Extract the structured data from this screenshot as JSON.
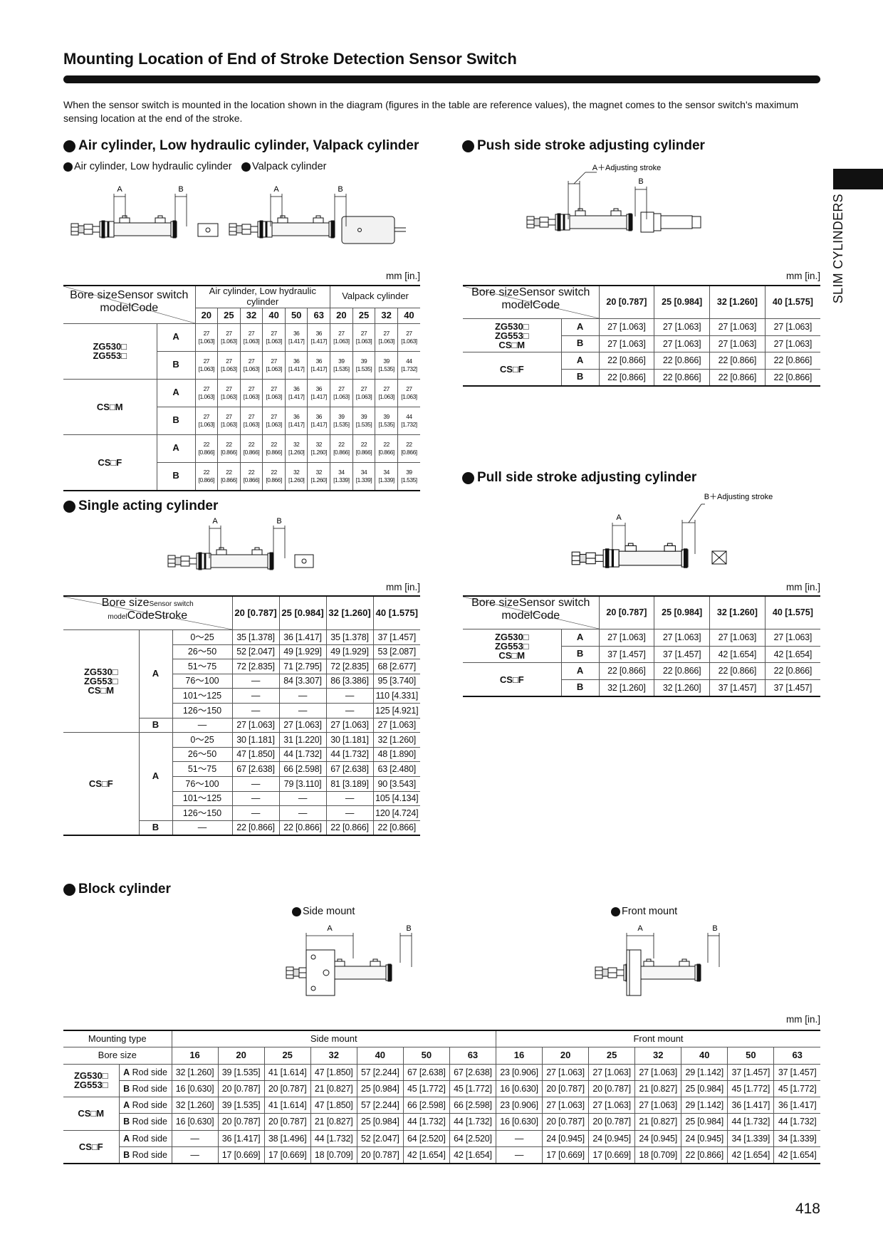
{
  "header": {
    "title": "Mounting Location of End of Stroke Detection Sensor Switch",
    "intro": "When the sensor switch is mounted in the location shown in the diagram (figures in the table are reference values), the magnet comes to the sensor switch's maximum sensing location at the end of the stroke."
  },
  "side_tab": "SLIM CYLINDERS",
  "page_number": "418",
  "unit": "mm [in.]",
  "sections": {
    "air": {
      "title": "Air cylinder, Low hydraulic cylinder, Valpack cylinder",
      "diagrams": [
        {
          "caption": "Air cylinder, Low hydraulic cylinder",
          "labels": [
            "A",
            "B"
          ]
        },
        {
          "caption": "Valpack cylinder",
          "labels": [
            "A",
            "B"
          ]
        }
      ],
      "table": {
        "corner_top": "Bore size",
        "corner_left": "Sensor switch model",
        "code_header": "Code",
        "groups": [
          {
            "name": "Air cylinder, Low hydraulic cylinder",
            "bores": [
              20,
              25,
              32,
              40,
              50,
              63
            ]
          },
          {
            "name": "Valpack cylinder",
            "bores": [
              20,
              25,
              32,
              40
            ]
          }
        ],
        "rows": [
          {
            "models": [
              "ZG530□",
              "ZG553□"
            ],
            "codes": [
              {
                "code": "A",
                "values": [
                  "27 [1.063]",
                  "27 [1.063]",
                  "27 [1.063]",
                  "27 [1.063]",
                  "36 [1.417]",
                  "36 [1.417]",
                  "27 [1.063]",
                  "27 [1.063]",
                  "27 [1.063]",
                  "27 [1.063]"
                ]
              },
              {
                "code": "B",
                "values": [
                  "27 [1.063]",
                  "27 [1.063]",
                  "27 [1.063]",
                  "27 [1.063]",
                  "36 [1.417]",
                  "36 [1.417]",
                  "39 [1.535]",
                  "39 [1.535]",
                  "39 [1.535]",
                  "44 [1.732]"
                ]
              }
            ]
          },
          {
            "models": [
              "CS□M"
            ],
            "codes": [
              {
                "code": "A",
                "values": [
                  "27 [1.063]",
                  "27 [1.063]",
                  "27 [1.063]",
                  "27 [1.063]",
                  "36 [1.417]",
                  "36 [1.417]",
                  "27 [1.063]",
                  "27 [1.063]",
                  "27 [1.063]",
                  "27 [1.063]"
                ]
              },
              {
                "code": "B",
                "values": [
                  "27 [1.063]",
                  "27 [1.063]",
                  "27 [1.063]",
                  "27 [1.063]",
                  "36 [1.417]",
                  "36 [1.417]",
                  "39 [1.535]",
                  "39 [1.535]",
                  "39 [1.535]",
                  "44 [1.732]"
                ]
              }
            ]
          },
          {
            "models": [
              "CS□F"
            ],
            "codes": [
              {
                "code": "A",
                "values": [
                  "22 [0.866]",
                  "22 [0.866]",
                  "22 [0.866]",
                  "22 [0.866]",
                  "32 [1.260]",
                  "32 [1.260]",
                  "22 [0.866]",
                  "22 [0.866]",
                  "22 [0.866]",
                  "22 [0.866]"
                ]
              },
              {
                "code": "B",
                "values": [
                  "22 [0.866]",
                  "22 [0.866]",
                  "22 [0.866]",
                  "22 [0.866]",
                  "32 [1.260]",
                  "32 [1.260]",
                  "34 [1.339]",
                  "34 [1.339]",
                  "34 [1.339]",
                  "39 [1.535]"
                ]
              }
            ]
          }
        ]
      }
    },
    "push": {
      "title": "Push side stroke adjusting cylinder",
      "diagram": {
        "labels": [
          "A＋Adjusting stroke",
          "B"
        ]
      },
      "table": {
        "corner_top": "Bore size",
        "corner_left": "Sensor switch model",
        "code_header": "Code",
        "bores": [
          "20 [0.787]",
          "25 [0.984]",
          "32 [1.260]",
          "40 [1.575]"
        ],
        "rows": [
          {
            "models": [
              "ZG530□",
              "ZG553□",
              "CS□M"
            ],
            "codes": [
              {
                "code": "A",
                "values": [
                  "27 [1.063]",
                  "27 [1.063]",
                  "27 [1.063]",
                  "27 [1.063]"
                ]
              },
              {
                "code": "B",
                "values": [
                  "27 [1.063]",
                  "27 [1.063]",
                  "27 [1.063]",
                  "27 [1.063]"
                ]
              }
            ]
          },
          {
            "models": [
              "CS□F"
            ],
            "codes": [
              {
                "code": "A",
                "values": [
                  "22 [0.866]",
                  "22 [0.866]",
                  "22 [0.866]",
                  "22 [0.866]"
                ]
              },
              {
                "code": "B",
                "values": [
                  "22 [0.866]",
                  "22 [0.866]",
                  "22 [0.866]",
                  "22 [0.866]"
                ]
              }
            ]
          }
        ]
      }
    },
    "pull": {
      "title": "Pull side stroke adjusting cylinder",
      "diagram": {
        "labels": [
          "A",
          "B＋Adjusting stroke"
        ]
      },
      "table": {
        "corner_top": "Bore size",
        "corner_left": "Sensor switch model",
        "code_header": "Code",
        "bores": [
          "20 [0.787]",
          "25 [0.984]",
          "32 [1.260]",
          "40 [1.575]"
        ],
        "rows": [
          {
            "models": [
              "ZG530□",
              "ZG553□",
              "CS□M"
            ],
            "codes": [
              {
                "code": "A",
                "values": [
                  "27 [1.063]",
                  "27 [1.063]",
                  "27 [1.063]",
                  "27 [1.063]"
                ]
              },
              {
                "code": "B",
                "values": [
                  "37 [1.457]",
                  "37 [1.457]",
                  "42 [1.654]",
                  "42 [1.654]"
                ]
              }
            ]
          },
          {
            "models": [
              "CS□F"
            ],
            "codes": [
              {
                "code": "A",
                "values": [
                  "22 [0.866]",
                  "22 [0.866]",
                  "22 [0.866]",
                  "22 [0.866]"
                ]
              },
              {
                "code": "B",
                "values": [
                  "32 [1.260]",
                  "32 [1.260]",
                  "37 [1.457]",
                  "37 [1.457]"
                ]
              }
            ]
          }
        ]
      }
    },
    "single": {
      "title": "Single acting cylinder",
      "diagram": {
        "labels": [
          "A",
          "B"
        ]
      },
      "table": {
        "corner_top": "Bore size",
        "corner_left": "Sensor switch model",
        "code_header": "Code",
        "stroke_header": "Stroke",
        "bores": [
          "20 [0.787]",
          "25 [0.984]",
          "32 [1.260]",
          "40 [1.575]"
        ],
        "rows": [
          {
            "models": [
              "ZG530□",
              "ZG553□",
              "CS□M"
            ],
            "codes": [
              {
                "code": "A",
                "strokes": [
                  {
                    "stroke": "0～25",
                    "values": [
                      "35 [1.378]",
                      "36 [1.417]",
                      "35 [1.378]",
                      "37 [1.457]"
                    ]
                  },
                  {
                    "stroke": "26～50",
                    "values": [
                      "52 [2.047]",
                      "49 [1.929]",
                      "49 [1.929]",
                      "53 [2.087]"
                    ]
                  },
                  {
                    "stroke": "51～75",
                    "values": [
                      "72 [2.835]",
                      "71 [2.795]",
                      "72 [2.835]",
                      "68 [2.677]"
                    ]
                  },
                  {
                    "stroke": "76～100",
                    "values": [
                      "—",
                      "84 [3.307]",
                      "86 [3.386]",
                      "95 [3.740]"
                    ]
                  },
                  {
                    "stroke": "101～125",
                    "values": [
                      "—",
                      "—",
                      "—",
                      "110 [4.331]"
                    ]
                  },
                  {
                    "stroke": "126～150",
                    "values": [
                      "—",
                      "—",
                      "—",
                      "125 [4.921]"
                    ]
                  }
                ]
              },
              {
                "code": "B",
                "strokes": [
                  {
                    "stroke": "—",
                    "values": [
                      "27 [1.063]",
                      "27 [1.063]",
                      "27 [1.063]",
                      "27 [1.063]"
                    ]
                  }
                ]
              }
            ]
          },
          {
            "models": [
              "CS□F"
            ],
            "codes": [
              {
                "code": "A",
                "strokes": [
                  {
                    "stroke": "0～25",
                    "values": [
                      "30 [1.181]",
                      "31 [1.220]",
                      "30 [1.181]",
                      "32 [1.260]"
                    ]
                  },
                  {
                    "stroke": "26～50",
                    "values": [
                      "47 [1.850]",
                      "44 [1.732]",
                      "44 [1.732]",
                      "48 [1.890]"
                    ]
                  },
                  {
                    "stroke": "51～75",
                    "values": [
                      "67 [2.638]",
                      "66 [2.598]",
                      "67 [2.638]",
                      "63 [2.480]"
                    ]
                  },
                  {
                    "stroke": "76～100",
                    "values": [
                      "—",
                      "79 [3.110]",
                      "81 [3.189]",
                      "90 [3.543]"
                    ]
                  },
                  {
                    "stroke": "101～125",
                    "values": [
                      "—",
                      "—",
                      "—",
                      "105 [4.134]"
                    ]
                  },
                  {
                    "stroke": "126～150",
                    "values": [
                      "—",
                      "—",
                      "—",
                      "120 [4.724]"
                    ]
                  }
                ]
              },
              {
                "code": "B",
                "strokes": [
                  {
                    "stroke": "—",
                    "values": [
                      "22 [0.866]",
                      "22 [0.866]",
                      "22 [0.866]",
                      "22 [0.866]"
                    ]
                  }
                ]
              }
            ]
          }
        ]
      }
    },
    "block": {
      "title": "Block cylinder",
      "diagrams": [
        {
          "caption": "Side mount",
          "labels": [
            "A",
            "B"
          ]
        },
        {
          "caption": "Front mount",
          "labels": [
            "A",
            "B"
          ]
        }
      ],
      "table": {
        "mounting_header": "Mounting type",
        "bore_header": "Bore size",
        "groups": [
          {
            "name": "Side mount",
            "bores": [
              16,
              20,
              25,
              32,
              40,
              50,
              63
            ]
          },
          {
            "name": "Front mount",
            "bores": [
              16,
              20,
              25,
              32,
              40,
              50,
              63
            ]
          }
        ],
        "rows": [
          {
            "models": [
              "ZG530□",
              "ZG553□"
            ],
            "codes": [
              {
                "code": "A",
                "label": "Rod side",
                "values": [
                  "32 [1.260]",
                  "39 [1.535]",
                  "41 [1.614]",
                  "47 [1.850]",
                  "57 [2.244]",
                  "67 [2.638]",
                  "67 [2.638]",
                  "23 [0.906]",
                  "27 [1.063]",
                  "27 [1.063]",
                  "27 [1.063]",
                  "29 [1.142]",
                  "37 [1.457]",
                  "37 [1.457]"
                ]
              },
              {
                "code": "B",
                "label": "Rod side",
                "values": [
                  "16 [0.630]",
                  "20 [0.787]",
                  "20 [0.787]",
                  "21 [0.827]",
                  "25 [0.984]",
                  "45 [1.772]",
                  "45 [1.772]",
                  "16 [0.630]",
                  "20 [0.787]",
                  "20 [0.787]",
                  "21 [0.827]",
                  "25 [0.984]",
                  "45 [1.772]",
                  "45 [1.772]"
                ]
              }
            ]
          },
          {
            "models": [
              "CS□M"
            ],
            "codes": [
              {
                "code": "A",
                "label": "Rod side",
                "values": [
                  "32 [1.260]",
                  "39 [1.535]",
                  "41 [1.614]",
                  "47 [1.850]",
                  "57 [2.244]",
                  "66 [2.598]",
                  "66 [2.598]",
                  "23 [0.906]",
                  "27 [1.063]",
                  "27 [1.063]",
                  "27 [1.063]",
                  "29 [1.142]",
                  "36 [1.417]",
                  "36 [1.417]"
                ]
              },
              {
                "code": "B",
                "label": "Rod side",
                "values": [
                  "16 [0.630]",
                  "20 [0.787]",
                  "20 [0.787]",
                  "21 [0.827]",
                  "25 [0.984]",
                  "44 [1.732]",
                  "44 [1.732]",
                  "16 [0.630]",
                  "20 [0.787]",
                  "20 [0.787]",
                  "21 [0.827]",
                  "25 [0.984]",
                  "44 [1.732]",
                  "44 [1.732]"
                ]
              }
            ]
          },
          {
            "models": [
              "CS□F"
            ],
            "codes": [
              {
                "code": "A",
                "label": "Rod side",
                "values": [
                  "—",
                  "36 [1.417]",
                  "38 [1.496]",
                  "44 [1.732]",
                  "52 [2.047]",
                  "64 [2.520]",
                  "64 [2.520]",
                  "—",
                  "24 [0.945]",
                  "24 [0.945]",
                  "24 [0.945]",
                  "24 [0.945]",
                  "34 [1.339]",
                  "34 [1.339]"
                ]
              },
              {
                "code": "B",
                "label": "Rod side",
                "values": [
                  "—",
                  "17 [0.669]",
                  "17 [0.669]",
                  "18 [0.709]",
                  "20 [0.787]",
                  "42 [1.654]",
                  "42 [1.654]",
                  "—",
                  "17 [0.669]",
                  "17 [0.669]",
                  "18 [0.709]",
                  "22 [0.866]",
                  "42 [1.654]",
                  "42 [1.654]"
                ]
              }
            ]
          }
        ]
      }
    }
  }
}
